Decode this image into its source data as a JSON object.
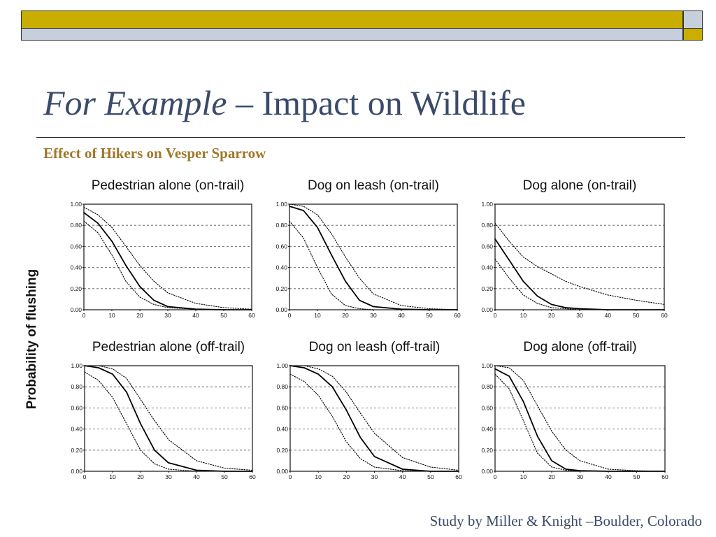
{
  "slide": {
    "title_italic": "For Example",
    "title_rest": " – Impact on Wildlife",
    "subtitle": "Effect of Hikers on Vesper Sparrow",
    "credit": "Study by Miller & Knight –Boulder, Colorado"
  },
  "colors": {
    "gold": "#c9ae00",
    "steel": "#c5d0dc",
    "title": "#3a4a6b",
    "subtitle": "#a0772a"
  },
  "chart_data": {
    "type": "line",
    "ylabel": "Probability of flushing",
    "x_ticks": [
      "0",
      "10",
      "20",
      "30",
      "40",
      "50",
      "60"
    ],
    "y_ticks": [
      "0.00",
      "0.20",
      "0.40",
      "0.60",
      "0.80",
      "1.00"
    ],
    "xlim": [
      0,
      60
    ],
    "ylim": [
      0,
      1
    ],
    "grid": "horizontal dashed",
    "panels": [
      {
        "title": "Pedestrian alone (on-trail)",
        "series": [
          {
            "style": "dotted-lower",
            "x": [
              0,
              5,
              10,
              15,
              20,
              25,
              30,
              40,
              50,
              60
            ],
            "y": [
              0.84,
              0.73,
              0.52,
              0.27,
              0.12,
              0.05,
              0.02,
              0.005,
              0.0,
              0.0
            ]
          },
          {
            "style": "solid",
            "x": [
              0,
              5,
              10,
              15,
              20,
              25,
              30,
              40,
              50,
              60
            ],
            "y": [
              0.92,
              0.82,
              0.65,
              0.42,
              0.22,
              0.09,
              0.03,
              0.005,
              0.0,
              0.0
            ]
          },
          {
            "style": "dotted-upper",
            "x": [
              0,
              5,
              10,
              15,
              20,
              25,
              30,
              40,
              50,
              60
            ],
            "y": [
              0.97,
              0.9,
              0.78,
              0.6,
              0.42,
              0.27,
              0.16,
              0.06,
              0.02,
              0.005
            ]
          }
        ]
      },
      {
        "title": "Dog on leash (on-trail)",
        "series": [
          {
            "style": "dotted-lower",
            "x": [
              0,
              5,
              10,
              15,
              20,
              25,
              30,
              40,
              50,
              60
            ],
            "y": [
              0.84,
              0.68,
              0.4,
              0.15,
              0.04,
              0.01,
              0.0,
              0.0,
              0.0,
              0.0
            ]
          },
          {
            "style": "solid",
            "x": [
              0,
              5,
              10,
              15,
              20,
              25,
              30,
              40,
              50,
              60
            ],
            "y": [
              0.98,
              0.94,
              0.78,
              0.52,
              0.27,
              0.09,
              0.03,
              0.005,
              0.0,
              0.0
            ]
          },
          {
            "style": "dotted-upper",
            "x": [
              0,
              5,
              10,
              15,
              20,
              25,
              30,
              40,
              50,
              60
            ],
            "y": [
              1.0,
              0.98,
              0.9,
              0.72,
              0.5,
              0.3,
              0.15,
              0.04,
              0.01,
              0.0
            ]
          }
        ]
      },
      {
        "title": "Dog alone (on-trail)",
        "series": [
          {
            "style": "dotted-lower",
            "x": [
              0,
              5,
              10,
              15,
              20,
              25,
              30,
              40,
              50,
              60
            ],
            "y": [
              0.48,
              0.3,
              0.14,
              0.06,
              0.02,
              0.01,
              0.0,
              0.0,
              0.0,
              0.0
            ]
          },
          {
            "style": "solid",
            "x": [
              0,
              5,
              10,
              15,
              20,
              25,
              30,
              40,
              50,
              60
            ],
            "y": [
              0.67,
              0.47,
              0.27,
              0.13,
              0.05,
              0.02,
              0.01,
              0.0,
              0.0,
              0.0
            ]
          },
          {
            "style": "dotted-upper",
            "x": [
              0,
              5,
              10,
              15,
              20,
              25,
              30,
              40,
              50,
              60
            ],
            "y": [
              0.82,
              0.65,
              0.5,
              0.41,
              0.34,
              0.27,
              0.22,
              0.14,
              0.09,
              0.05
            ]
          }
        ]
      },
      {
        "title": "Pedestrian alone (off-trail)",
        "series": [
          {
            "style": "dotted-lower",
            "x": [
              0,
              5,
              10,
              15,
              20,
              25,
              30,
              40,
              50,
              60
            ],
            "y": [
              0.94,
              0.86,
              0.7,
              0.45,
              0.2,
              0.07,
              0.02,
              0.0,
              0.0,
              0.0
            ]
          },
          {
            "style": "solid",
            "x": [
              0,
              5,
              10,
              15,
              20,
              25,
              30,
              40,
              50,
              60
            ],
            "y": [
              1.0,
              0.98,
              0.92,
              0.75,
              0.45,
              0.2,
              0.08,
              0.01,
              0.0,
              0.0
            ]
          },
          {
            "style": "dotted-upper",
            "x": [
              0,
              5,
              10,
              15,
              20,
              25,
              30,
              40,
              50,
              60
            ],
            "y": [
              1.0,
              1.0,
              0.97,
              0.88,
              0.68,
              0.48,
              0.3,
              0.1,
              0.03,
              0.01
            ]
          }
        ]
      },
      {
        "title": "Dog on leash (off-trail)",
        "series": [
          {
            "style": "dotted-lower",
            "x": [
              0,
              5,
              10,
              15,
              20,
              25,
              30,
              40,
              50,
              60
            ],
            "y": [
              0.92,
              0.85,
              0.72,
              0.52,
              0.28,
              0.12,
              0.04,
              0.005,
              0.0,
              0.0
            ]
          },
          {
            "style": "solid",
            "x": [
              0,
              5,
              10,
              15,
              20,
              25,
              30,
              40,
              50,
              60
            ],
            "y": [
              1.0,
              0.98,
              0.92,
              0.8,
              0.58,
              0.32,
              0.14,
              0.02,
              0.0,
              0.0
            ]
          },
          {
            "style": "dotted-upper",
            "x": [
              0,
              5,
              10,
              15,
              20,
              25,
              30,
              40,
              50,
              60
            ],
            "y": [
              1.0,
              1.0,
              0.97,
              0.9,
              0.75,
              0.55,
              0.36,
              0.13,
              0.04,
              0.01
            ]
          }
        ]
      },
      {
        "title": "Dog alone (off-trail)",
        "series": [
          {
            "style": "dotted-lower",
            "x": [
              0,
              5,
              10,
              15,
              20,
              25,
              30,
              40,
              50,
              60
            ],
            "y": [
              0.92,
              0.78,
              0.48,
              0.17,
              0.04,
              0.01,
              0.0,
              0.0,
              0.0,
              0.0
            ]
          },
          {
            "style": "solid",
            "x": [
              0,
              5,
              10,
              15,
              20,
              25,
              30,
              40,
              50,
              60
            ],
            "y": [
              0.97,
              0.9,
              0.66,
              0.33,
              0.1,
              0.02,
              0.005,
              0.0,
              0.0,
              0.0
            ]
          },
          {
            "style": "dotted-upper",
            "x": [
              0,
              5,
              10,
              15,
              20,
              25,
              30,
              40,
              50,
              60
            ],
            "y": [
              1.0,
              0.98,
              0.86,
              0.62,
              0.38,
              0.2,
              0.1,
              0.02,
              0.005,
              0.0
            ]
          }
        ]
      }
    ]
  }
}
